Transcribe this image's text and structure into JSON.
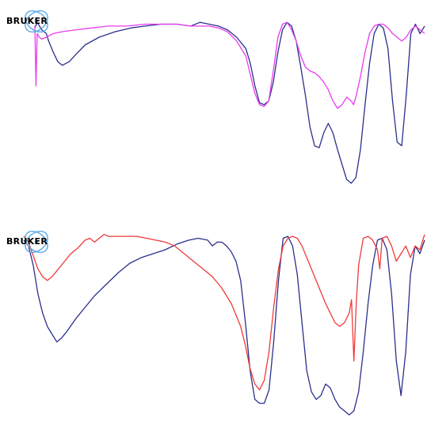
{
  "logo": {
    "text": "BRUKER"
  },
  "colors": {
    "blue": "#2b2f8c",
    "magenta": "#e83cf0",
    "red": "#f03a3a",
    "logo_blue": "#5aa9e6"
  },
  "chart_data": [
    {
      "type": "line",
      "grid": false,
      "legend": "none",
      "ylim": [
        0,
        100
      ],
      "series": [
        {
          "color": "#2b2f8c",
          "points": [
            [
              0,
              91
            ],
            [
              1,
              94
            ],
            [
              2,
              92
            ],
            [
              3,
              90
            ],
            [
              4,
              89
            ],
            [
              5,
              88
            ],
            [
              6,
              84
            ],
            [
              8,
              78
            ],
            [
              10,
              73
            ],
            [
              12,
              71
            ],
            [
              15,
              73
            ],
            [
              18,
              77
            ],
            [
              22,
              82
            ],
            [
              28,
              86
            ],
            [
              35,
              89
            ],
            [
              42,
              91
            ],
            [
              48,
              92
            ],
            [
              55,
              93
            ],
            [
              62,
              93
            ],
            [
              68,
              92
            ],
            [
              72,
              94
            ],
            [
              76,
              93
            ],
            [
              80,
              92
            ],
            [
              84,
              90
            ],
            [
              88,
              86
            ],
            [
              92,
              80
            ],
            [
              94,
              72
            ],
            [
              96,
              60
            ],
            [
              98,
              51
            ],
            [
              100,
              50
            ],
            [
              102,
              52
            ],
            [
              104,
              62
            ],
            [
              106,
              78
            ],
            [
              108,
              90
            ],
            [
              110,
              94
            ],
            [
              112,
              92
            ],
            [
              114,
              84
            ],
            [
              116,
              70
            ],
            [
              118,
              55
            ],
            [
              120,
              38
            ],
            [
              122,
              28
            ],
            [
              124,
              27
            ],
            [
              126,
              35
            ],
            [
              128,
              40
            ],
            [
              130,
              35
            ],
            [
              132,
              26
            ],
            [
              134,
              18
            ],
            [
              136,
              10
            ],
            [
              138,
              8
            ],
            [
              140,
              11
            ],
            [
              142,
              26
            ],
            [
              144,
              50
            ],
            [
              146,
              72
            ],
            [
              148,
              88
            ],
            [
              150,
              93
            ],
            [
              152,
              91
            ],
            [
              154,
              80
            ],
            [
              156,
              52
            ],
            [
              158,
              30
            ],
            [
              160,
              28
            ],
            [
              162,
              55
            ],
            [
              164,
              88
            ],
            [
              166,
              93
            ],
            [
              168,
              88
            ],
            [
              170,
              92
            ]
          ]
        },
        {
          "color": "#e83cf0",
          "points": [
            [
              0,
              92
            ],
            [
              0.5,
              60
            ],
            [
              1,
              88
            ],
            [
              2,
              86
            ],
            [
              3,
              85
            ],
            [
              5,
              86
            ],
            [
              8,
              88
            ],
            [
              12,
              89
            ],
            [
              18,
              90
            ],
            [
              25,
              91
            ],
            [
              32,
              92
            ],
            [
              40,
              92
            ],
            [
              48,
              93
            ],
            [
              55,
              93
            ],
            [
              62,
              93
            ],
            [
              68,
              92
            ],
            [
              72,
              92
            ],
            [
              76,
              92
            ],
            [
              80,
              91
            ],
            [
              84,
              89
            ],
            [
              88,
              84
            ],
            [
              92,
              76
            ],
            [
              94,
              66
            ],
            [
              96,
              56
            ],
            [
              98,
              50
            ],
            [
              100,
              49
            ],
            [
              102,
              52
            ],
            [
              104,
              68
            ],
            [
              106,
              86
            ],
            [
              108,
              93
            ],
            [
              110,
              94
            ],
            [
              112,
              90
            ],
            [
              114,
              84
            ],
            [
              116,
              76
            ],
            [
              118,
              70
            ],
            [
              120,
              68
            ],
            [
              122,
              67
            ],
            [
              124,
              65
            ],
            [
              126,
              62
            ],
            [
              128,
              58
            ],
            [
              130,
              52
            ],
            [
              132,
              48
            ],
            [
              134,
              50
            ],
            [
              136,
              54
            ],
            [
              138,
              52
            ],
            [
              139,
              50
            ],
            [
              140,
              54
            ],
            [
              142,
              65
            ],
            [
              144,
              78
            ],
            [
              146,
              88
            ],
            [
              148,
              92
            ],
            [
              150,
              93
            ],
            [
              152,
              93
            ],
            [
              154,
              91
            ],
            [
              156,
              88
            ],
            [
              158,
              86
            ],
            [
              160,
              84
            ],
            [
              162,
              86
            ],
            [
              164,
              90
            ],
            [
              166,
              92
            ],
            [
              168,
              90
            ],
            [
              170,
              88
            ]
          ]
        }
      ]
    },
    {
      "type": "line",
      "grid": false,
      "legend": "none",
      "ylim": [
        0,
        100
      ],
      "series": [
        {
          "color": "#2b2f8c",
          "points": [
            [
              0,
              93
            ],
            [
              2,
              90
            ],
            [
              4,
              80
            ],
            [
              6,
              65
            ],
            [
              8,
              55
            ],
            [
              10,
              48
            ],
            [
              12,
              44
            ],
            [
              14,
              40
            ],
            [
              16,
              42
            ],
            [
              18,
              45
            ],
            [
              22,
              52
            ],
            [
              26,
              58
            ],
            [
              30,
              64
            ],
            [
              35,
              70
            ],
            [
              40,
              76
            ],
            [
              45,
              81
            ],
            [
              50,
              84
            ],
            [
              55,
              86
            ],
            [
              60,
              88
            ],
            [
              65,
              91
            ],
            [
              70,
              93
            ],
            [
              74,
              94
            ],
            [
              78,
              93
            ],
            [
              80,
              90
            ],
            [
              82,
              92
            ],
            [
              84,
              92
            ],
            [
              86,
              90
            ],
            [
              88,
              87
            ],
            [
              90,
              82
            ],
            [
              92,
              72
            ],
            [
              94,
              50
            ],
            [
              96,
              25
            ],
            [
              98,
              10
            ],
            [
              100,
              8
            ],
            [
              102,
              8
            ],
            [
              104,
              15
            ],
            [
              106,
              40
            ],
            [
              108,
              72
            ],
            [
              110,
              94
            ],
            [
              112,
              95
            ],
            [
              114,
              90
            ],
            [
              116,
              75
            ],
            [
              118,
              50
            ],
            [
              120,
              25
            ],
            [
              122,
              14
            ],
            [
              124,
              10
            ],
            [
              126,
              12
            ],
            [
              128,
              18
            ],
            [
              130,
              16
            ],
            [
              132,
              10
            ],
            [
              134,
              6
            ],
            [
              136,
              4
            ],
            [
              138,
              2
            ],
            [
              140,
              4
            ],
            [
              142,
              14
            ],
            [
              144,
              35
            ],
            [
              146,
              60
            ],
            [
              148,
              80
            ],
            [
              150,
              93
            ],
            [
              152,
              94
            ],
            [
              154,
              88
            ],
            [
              156,
              65
            ],
            [
              158,
              30
            ],
            [
              160,
              12
            ],
            [
              162,
              35
            ],
            [
              164,
              75
            ],
            [
              166,
              90
            ],
            [
              168,
              86
            ],
            [
              170,
              93
            ]
          ]
        },
        {
          "color": "#f03a3a",
          "points": [
            [
              0,
              95
            ],
            [
              2,
              92
            ],
            [
              4,
              85
            ],
            [
              6,
              78
            ],
            [
              8,
              74
            ],
            [
              10,
              72
            ],
            [
              12,
              74
            ],
            [
              14,
              77
            ],
            [
              16,
              80
            ],
            [
              18,
              83
            ],
            [
              20,
              86
            ],
            [
              23,
              89
            ],
            [
              26,
              93
            ],
            [
              28,
              94
            ],
            [
              30,
              92
            ],
            [
              32,
              94
            ],
            [
              34,
              96
            ],
            [
              36,
              95
            ],
            [
              40,
              95
            ],
            [
              44,
              95
            ],
            [
              48,
              95
            ],
            [
              52,
              94
            ],
            [
              56,
              93
            ],
            [
              60,
              92
            ],
            [
              64,
              90
            ],
            [
              68,
              86
            ],
            [
              72,
              82
            ],
            [
              76,
              78
            ],
            [
              80,
              74
            ],
            [
              84,
              68
            ],
            [
              88,
              60
            ],
            [
              92,
              48
            ],
            [
              94,
              38
            ],
            [
              96,
              26
            ],
            [
              98,
              18
            ],
            [
              100,
              15
            ],
            [
              102,
              20
            ],
            [
              104,
              35
            ],
            [
              106,
              58
            ],
            [
              108,
              78
            ],
            [
              110,
              90
            ],
            [
              112,
              94
            ],
            [
              114,
              95
            ],
            [
              116,
              94
            ],
            [
              118,
              90
            ],
            [
              120,
              84
            ],
            [
              122,
              78
            ],
            [
              124,
              72
            ],
            [
              126,
              66
            ],
            [
              128,
              60
            ],
            [
              130,
              55
            ],
            [
              132,
              50
            ],
            [
              134,
              48
            ],
            [
              136,
              50
            ],
            [
              138,
              55
            ],
            [
              139,
              62
            ],
            [
              140,
              30
            ],
            [
              141,
              60
            ],
            [
              142,
              80
            ],
            [
              144,
              94
            ],
            [
              146,
              95
            ],
            [
              148,
              93
            ],
            [
              150,
              88
            ],
            [
              151,
              78
            ],
            [
              152,
              94
            ],
            [
              154,
              95
            ],
            [
              156,
              90
            ],
            [
              158,
              82
            ],
            [
              160,
              86
            ],
            [
              162,
              90
            ],
            [
              164,
              84
            ],
            [
              166,
              90
            ],
            [
              168,
              88
            ],
            [
              170,
              96
            ]
          ]
        }
      ]
    }
  ]
}
